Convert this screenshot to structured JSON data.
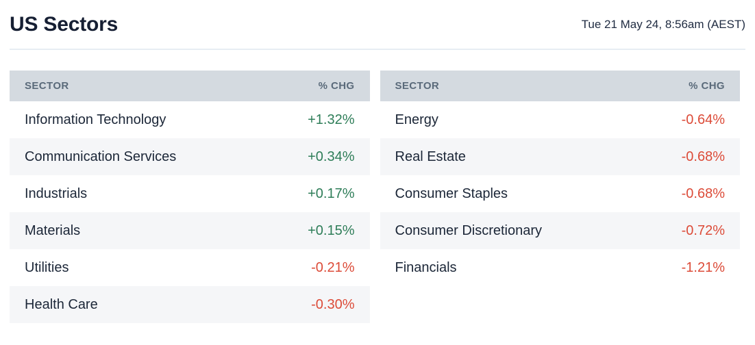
{
  "page": {
    "title": "US Sectors",
    "timestamp": "Tue 21 May 24, 8:56am (AEST)"
  },
  "columns": {
    "sector": "SECTOR",
    "chg": "% CHG"
  },
  "colors": {
    "positive": "#2e7d58",
    "negative": "#dc4b38",
    "header_background": "#d4dae0",
    "header_text": "#5a6a7a",
    "row_alt_background": "#f5f6f8",
    "text_dark": "#1b2637"
  },
  "tables": [
    {
      "rows": [
        {
          "sector": "Information Technology",
          "chg": "+1.32%",
          "direction": "pos"
        },
        {
          "sector": "Communication Services",
          "chg": "+0.34%",
          "direction": "pos"
        },
        {
          "sector": "Industrials",
          "chg": "+0.17%",
          "direction": "pos"
        },
        {
          "sector": "Materials",
          "chg": "+0.15%",
          "direction": "pos"
        },
        {
          "sector": "Utilities",
          "chg": "-0.21%",
          "direction": "neg"
        },
        {
          "sector": "Health Care",
          "chg": "-0.30%",
          "direction": "neg"
        }
      ]
    },
    {
      "rows": [
        {
          "sector": "Energy",
          "chg": "-0.64%",
          "direction": "neg"
        },
        {
          "sector": "Real Estate",
          "chg": "-0.68%",
          "direction": "neg"
        },
        {
          "sector": "Consumer Staples",
          "chg": "-0.68%",
          "direction": "neg"
        },
        {
          "sector": "Consumer Discretionary",
          "chg": "-0.72%",
          "direction": "neg"
        },
        {
          "sector": "Financials",
          "chg": "-1.21%",
          "direction": "neg"
        }
      ]
    }
  ]
}
